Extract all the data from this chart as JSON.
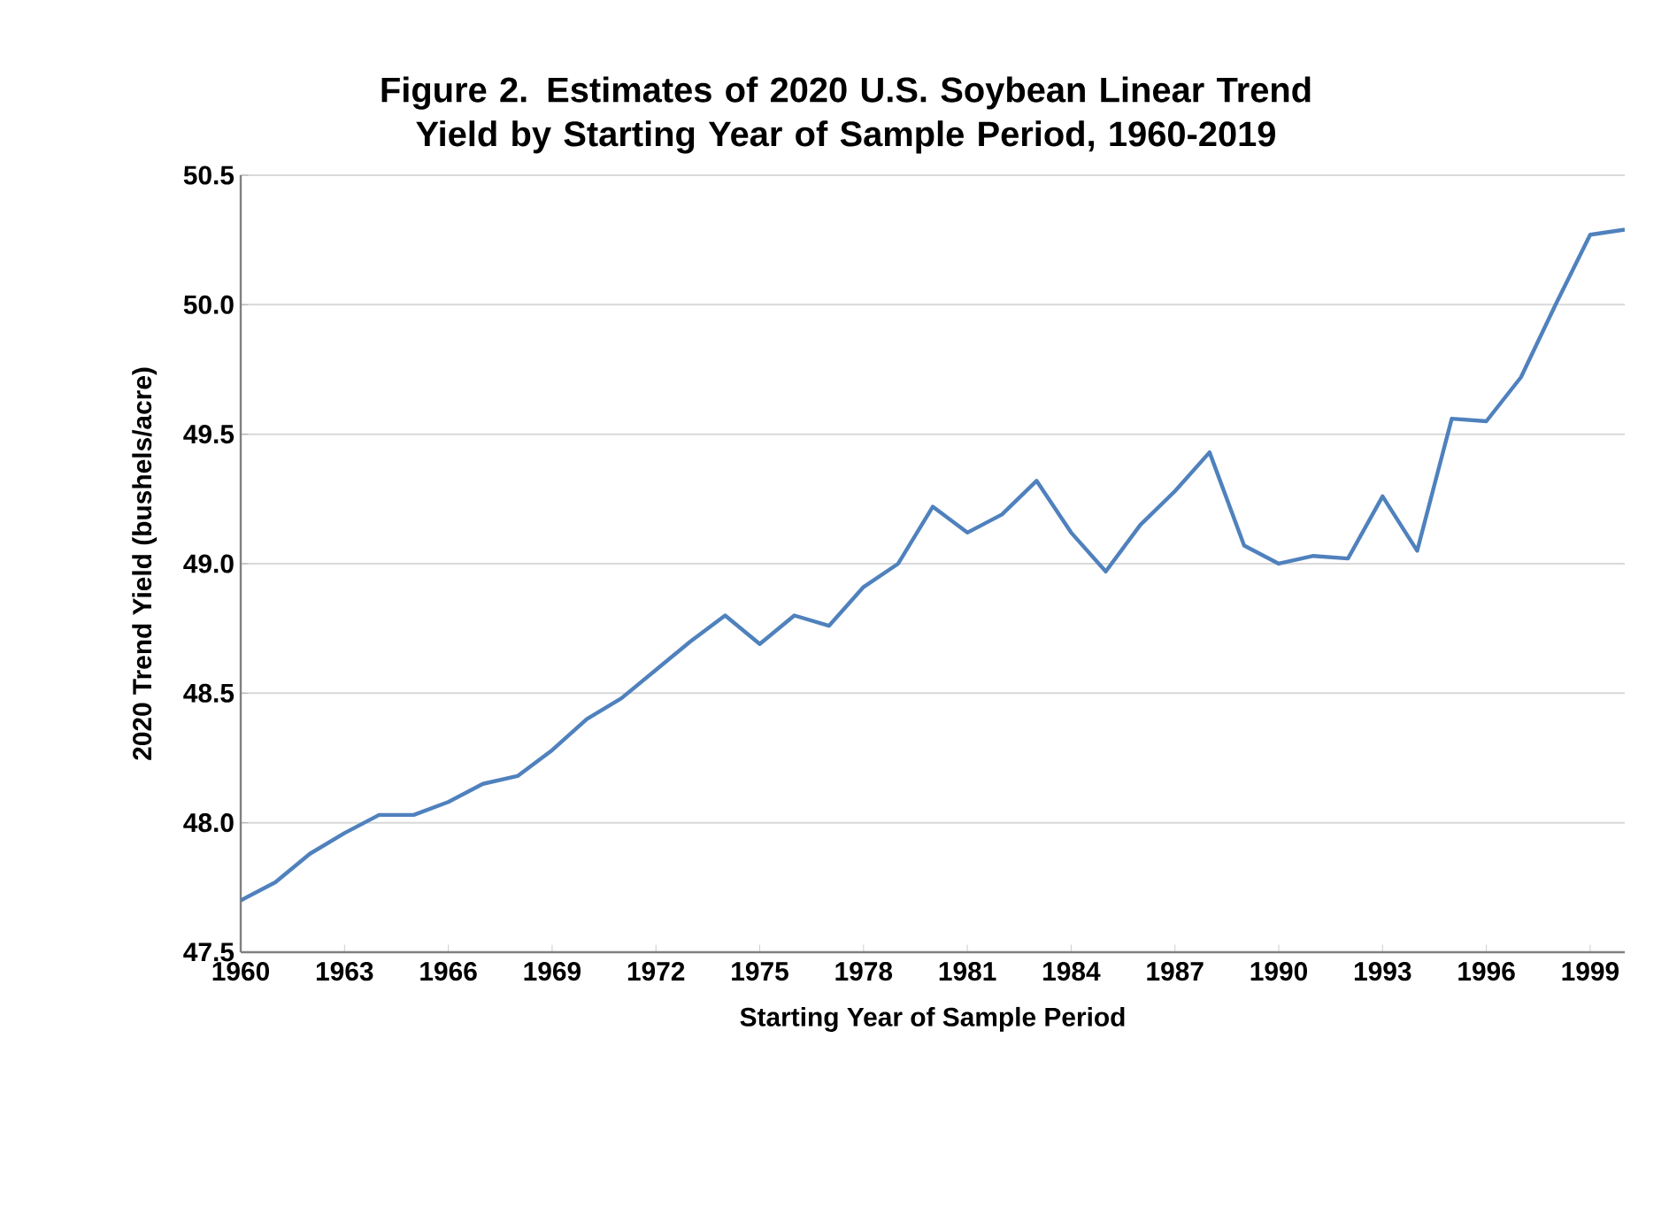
{
  "chart_data": {
    "type": "line",
    "title": "Figure 2. Estimates of 2020 U.S. Soybean Linear Trend Yield by Starting Year of Sample Period, 1960-2019",
    "xlabel": "Starting Year of Sample Period",
    "ylabel": "2020 Trend Yield (bushels/acre)",
    "x": [
      1960,
      1961,
      1962,
      1963,
      1964,
      1965,
      1966,
      1967,
      1968,
      1969,
      1970,
      1971,
      1972,
      1973,
      1974,
      1975,
      1976,
      1977,
      1978,
      1979,
      1980,
      1981,
      1982,
      1983,
      1984,
      1985,
      1986,
      1987,
      1988,
      1989,
      1990,
      1991,
      1992,
      1993,
      1994,
      1995,
      1996,
      1997,
      1998,
      1999,
      2000
    ],
    "series": [
      {
        "color": "#4f81bd",
        "values": [
          47.7,
          47.77,
          47.88,
          47.96,
          48.03,
          48.03,
          48.08,
          48.15,
          48.18,
          48.28,
          48.4,
          48.48,
          48.59,
          48.7,
          48.8,
          48.69,
          48.8,
          48.76,
          48.91,
          49.0,
          49.22,
          49.12,
          49.19,
          49.32,
          49.12,
          48.97,
          49.15,
          49.28,
          49.43,
          49.07,
          49.0,
          49.03,
          49.02,
          49.26,
          49.05,
          49.56,
          49.55,
          49.72,
          50.0,
          50.27,
          50.29
        ]
      }
    ],
    "xlim": [
      1960,
      2000
    ],
    "xticks": [
      1960,
      1963,
      1966,
      1969,
      1972,
      1975,
      1978,
      1981,
      1984,
      1987,
      1990,
      1993,
      1996,
      1999
    ],
    "ylim": [
      47.5,
      50.5
    ],
    "yticks": [
      {
        "value": 47.5,
        "label": "47.5"
      },
      {
        "value": 48,
        "label": "48.0"
      },
      {
        "value": 48.5,
        "label": "48.5"
      },
      {
        "value": 49,
        "label": "49.0"
      },
      {
        "value": 49.5,
        "label": "49.5"
      },
      {
        "value": 50,
        "label": "50.0"
      },
      {
        "value": 50.5,
        "label": "50.5"
      }
    ],
    "grid": "y",
    "marker": "none",
    "line_style": "solid"
  }
}
